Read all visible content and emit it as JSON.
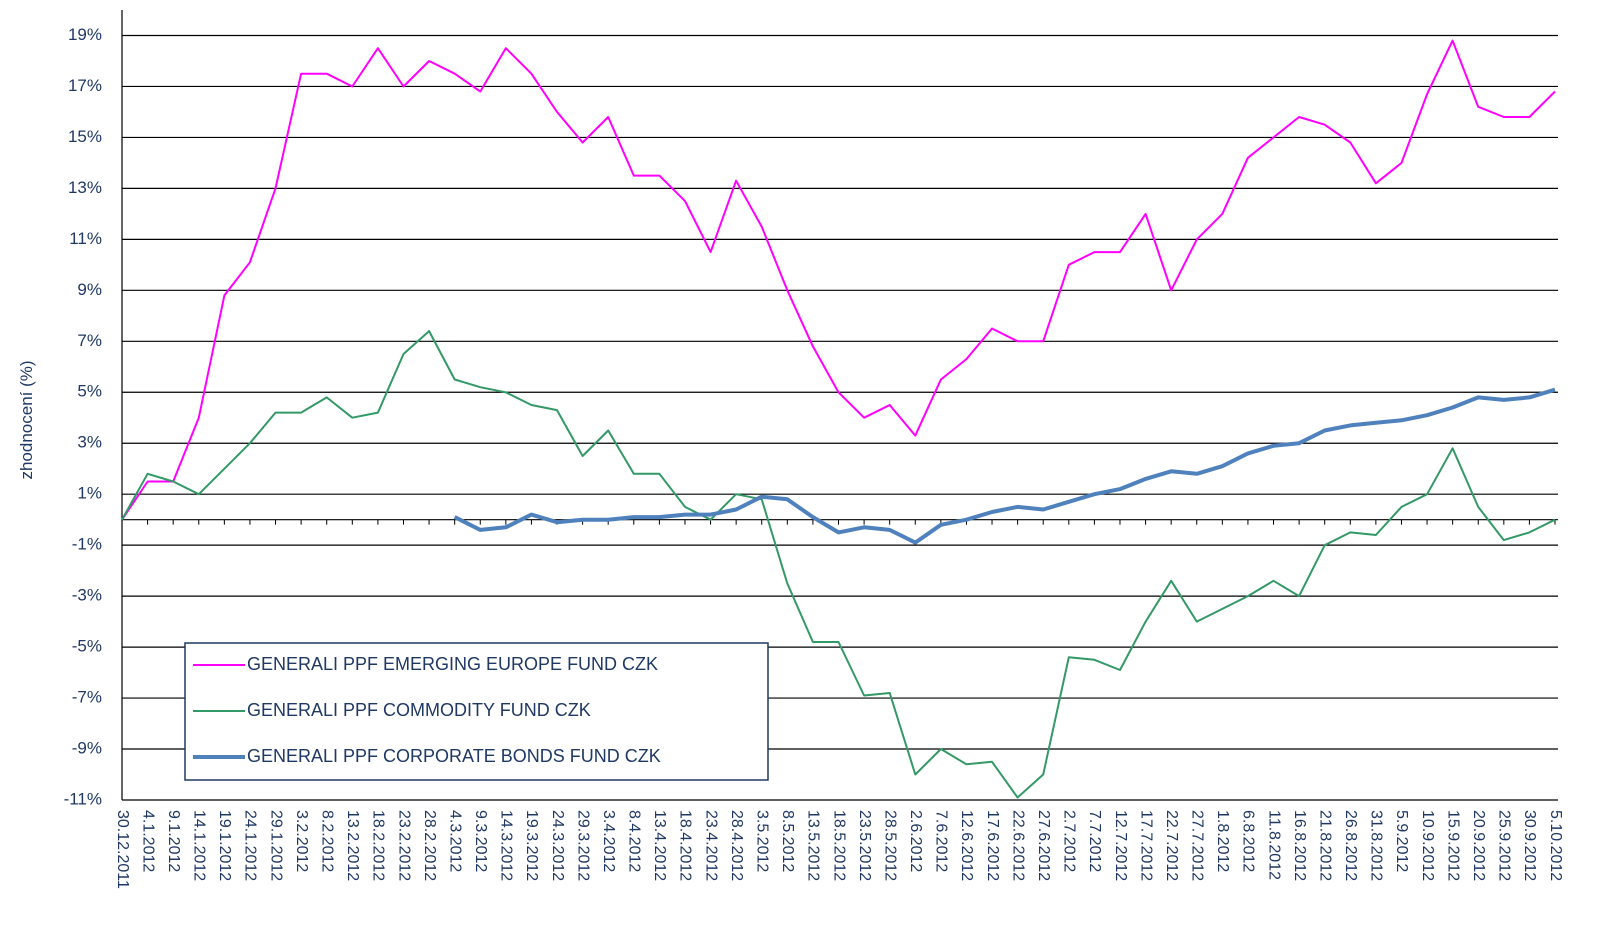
{
  "chart_data": {
    "type": "line",
    "y_label": "zhodnocení (%)",
    "categories": [
      "30.12.2011",
      "4.1.2012",
      "9.1.2012",
      "14.1.2012",
      "19.1.2012",
      "24.1.2012",
      "29.1.2012",
      "3.2.2012",
      "8.2.2012",
      "13.2.2012",
      "18.2.2012",
      "23.2.2012",
      "28.2.2012",
      "4.3.2012",
      "9.3.2012",
      "14.3.2012",
      "19.3.2012",
      "24.3.2012",
      "29.3.2012",
      "3.4.2012",
      "8.4.2012",
      "13.4.2012",
      "18.4.2012",
      "23.4.2012",
      "28.4.2012",
      "3.5.2012",
      "8.5.2012",
      "13.5.2012",
      "18.5.2012",
      "23.5.2012",
      "28.5.2012",
      "2.6.2012",
      "7.6.2012",
      "12.6.2012",
      "17.6.2012",
      "22.6.2012",
      "27.6.2012",
      "2.7.2012",
      "7.7.2012",
      "12.7.2012",
      "17.7.2012",
      "22.7.2012",
      "27.7.2012",
      "1.8.2012",
      "6.8.2012",
      "11.8.2012",
      "16.8.2012",
      "21.8.2012",
      "26.8.2012",
      "31.8.2012",
      "5.9.2012",
      "10.9.2012",
      "15.9.2012",
      "20.9.2012",
      "25.9.2012",
      "30.9.2012",
      "5.10.2012"
    ],
    "series": [
      {
        "name": "GENERALI PPF EMERGING EUROPE FUND CZK",
        "color": "#ff00ff",
        "width": 2,
        "values": [
          0,
          1.5,
          1.5,
          4.0,
          8.8,
          10.1,
          13.0,
          17.5,
          17.5,
          17.0,
          18.5,
          17.0,
          18.0,
          17.5,
          16.8,
          18.5,
          17.5,
          16.0,
          14.8,
          15.8,
          13.5,
          13.5,
          12.5,
          10.5,
          13.3,
          11.5,
          9.0,
          6.8,
          5.0,
          4.0,
          4.5,
          3.3,
          5.5,
          6.3,
          7.5,
          7.0,
          7.0,
          10.0,
          10.5,
          10.5,
          12.0,
          9.0,
          11.0,
          12.0,
          14.2,
          15.0,
          15.8,
          15.5,
          14.8,
          13.2,
          14.0,
          16.7,
          18.8,
          16.2,
          15.8,
          15.8,
          16.8
        ]
      },
      {
        "name": "GENERALI PPF COMMODITY FUND CZK",
        "color": "#339966",
        "width": 2,
        "values": [
          0,
          1.8,
          1.5,
          1.0,
          2.0,
          3.0,
          4.2,
          4.2,
          4.8,
          4.0,
          4.2,
          6.5,
          7.4,
          5.5,
          5.2,
          5.0,
          4.5,
          4.3,
          2.5,
          3.5,
          1.8,
          1.8,
          0.5,
          0.0,
          1.0,
          0.8,
          -2.5,
          -4.8,
          -4.8,
          -6.9,
          -6.8,
          -10.0,
          -9.0,
          -9.6,
          -9.5,
          -10.9,
          -10.0,
          -5.4,
          -5.5,
          -5.9,
          -4.0,
          -2.4,
          -4.0,
          -3.5,
          -3.0,
          -2.4,
          -3.0,
          -1.0,
          -0.5,
          -0.6,
          0.5,
          1.0,
          2.8,
          0.5,
          -0.8,
          -0.5,
          0.0
        ]
      },
      {
        "name": "GENERALI PPF CORPORATE BONDS FUND CZK",
        "color": "#4f81bd",
        "width": 4,
        "values": [
          null,
          null,
          null,
          null,
          null,
          null,
          null,
          null,
          null,
          null,
          null,
          null,
          null,
          0.1,
          -0.4,
          -0.3,
          0.2,
          -0.1,
          0.0,
          0.0,
          0.1,
          0.1,
          0.2,
          0.2,
          0.4,
          0.9,
          0.8,
          0.1,
          -0.5,
          -0.3,
          -0.4,
          -0.9,
          -0.2,
          0.0,
          0.3,
          0.5,
          0.4,
          0.7,
          1.0,
          1.2,
          1.6,
          1.9,
          1.8,
          2.1,
          2.6,
          2.9,
          3.0,
          3.5,
          3.7,
          3.8,
          3.9,
          4.1,
          4.4,
          4.8,
          4.7,
          4.8,
          5.1
        ]
      }
    ],
    "ylim": [
      -11,
      20
    ],
    "yticks": [
      {
        "value": 19,
        "label": "19%"
      },
      {
        "value": 17,
        "label": "17%"
      },
      {
        "value": 15,
        "label": "15%"
      },
      {
        "value": 13,
        "label": "13%"
      },
      {
        "value": 11,
        "label": "11%"
      },
      {
        "value": 9,
        "label": "9%"
      },
      {
        "value": 7,
        "label": "7%"
      },
      {
        "value": 5,
        "label": "5%"
      },
      {
        "value": 3,
        "label": "3%"
      },
      {
        "value": 1,
        "label": "1%"
      },
      {
        "value": -1,
        "label": "-1%"
      },
      {
        "value": -3,
        "label": "-3%"
      },
      {
        "value": -5,
        "label": "-5%"
      },
      {
        "value": -7,
        "label": "-7%"
      },
      {
        "value": -9,
        "label": "-9%"
      },
      {
        "value": -11,
        "label": "-11%"
      }
    ],
    "grid": true,
    "legend_position": "lower left"
  }
}
